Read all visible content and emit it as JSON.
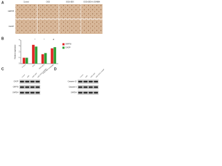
{
  "figure": {
    "panel_letters": [
      "A",
      "B",
      "C",
      "D"
    ],
    "ihc": {
      "columns": [
        "Control",
        "OGD",
        "OGD+DEX",
        "OGD+DEX+U-50488H"
      ],
      "rows": [
        "GRP78",
        "CHOP"
      ]
    },
    "blot_left": {
      "columns": [
        "Control",
        "OGD",
        "OGD+DEX",
        "OGD+DEX+U-50488H"
      ],
      "rows": [
        "CHOP",
        "GRP78",
        "GAPDH"
      ]
    },
    "blot_right": {
      "columns": [
        "Control",
        "OGD",
        "OGD+DEX",
        "OGD+DEX+U-50488H"
      ],
      "rows": [
        "Caspase-12",
        "Caspase-3",
        "GAPDH"
      ]
    }
  },
  "chart_data": {
    "type": "bar",
    "y_label": "Relative expression",
    "categories": [
      "Control",
      "OGD",
      "OGD+DEX",
      "OGD+DEX+U-50488H"
    ],
    "series": [
      {
        "name": "GRP78",
        "color": "#e02424",
        "values": [
          1,
          3.2,
          1.6,
          2.6
        ]
      },
      {
        "name": "CHOP",
        "color": "#2e9e36",
        "values": [
          1,
          2.9,
          1.8,
          2.8
        ]
      }
    ],
    "annotations": [
      "*",
      "*",
      "#"
    ],
    "ylim": [
      0,
      4
    ],
    "yticks": [
      0,
      1,
      2,
      3,
      4
    ],
    "legend": "right"
  }
}
